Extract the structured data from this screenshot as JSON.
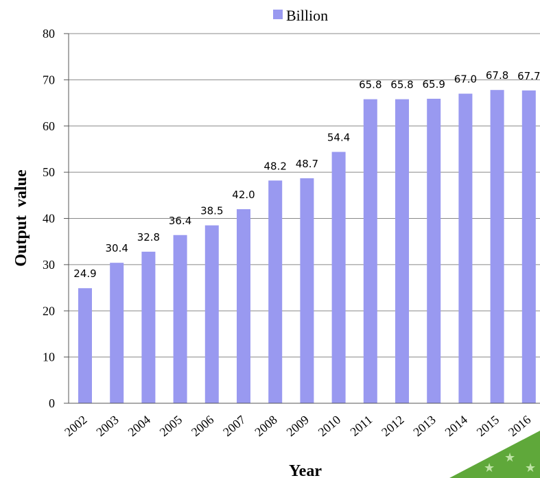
{
  "chart_data": {
    "type": "bar",
    "categories": [
      "2002",
      "2003",
      "2004",
      "2005",
      "2006",
      "2007",
      "2008",
      "2009",
      "2010",
      "2011",
      "2012",
      "2013",
      "2014",
      "2015",
      "2016"
    ],
    "series": [
      {
        "name": "Billion",
        "values": [
          24.9,
          30.4,
          32.8,
          36.4,
          38.5,
          42.0,
          48.2,
          48.7,
          54.4,
          65.8,
          65.8,
          65.9,
          67.0,
          67.8,
          67.7
        ]
      }
    ],
    "data_labels": [
      "24.9",
      "30.4",
      "32.8",
      "36.4",
      "38.5",
      "42.0",
      "48.2",
      "48.7",
      "54.4",
      "65.8",
      "65.8",
      "65.9",
      "67.0",
      "67.8",
      "67.7"
    ],
    "y_ticks": [
      "0",
      "10",
      "20",
      "30",
      "40",
      "50",
      "60",
      "70",
      "80"
    ],
    "xlabel": "Year",
    "ylabel": "Output  value",
    "ylim": [
      0,
      80
    ],
    "grid": true,
    "legend_position": "top-center",
    "colors": {
      "bar": "#9999f0",
      "grid": "#888888",
      "axis": "#555555",
      "badge": "#5fa83a"
    }
  }
}
